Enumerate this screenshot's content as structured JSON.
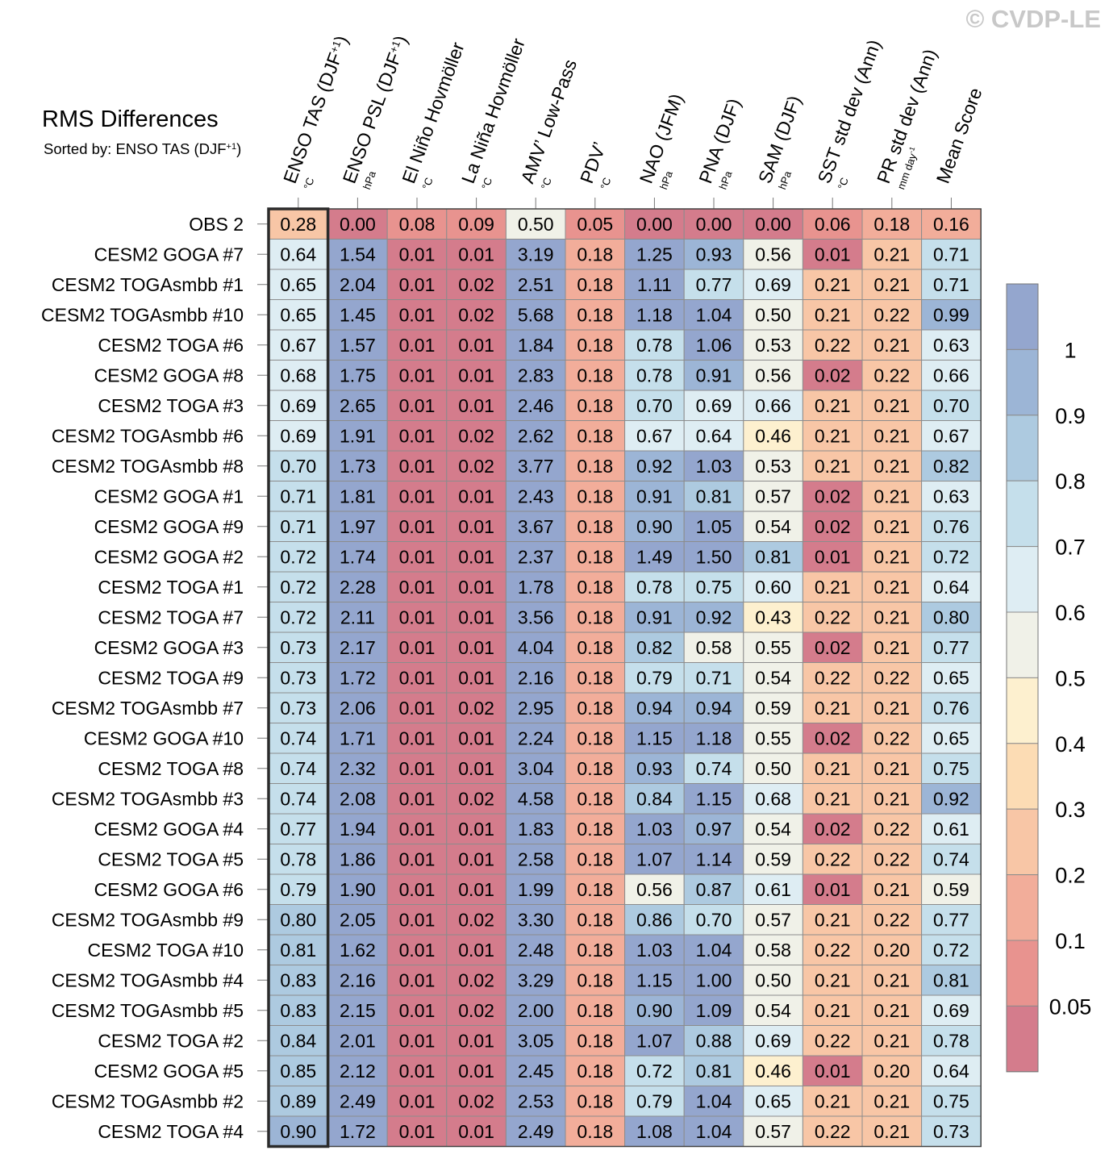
{
  "watermark": "© CVDP-LE",
  "chart_data": {
    "type": "heatmap",
    "title": "RMS Differences",
    "subtitle": {
      "text": "Sorted by: ENSO TAS (DJF",
      "sup": "+1",
      "close": ")"
    },
    "columns": [
      {
        "label": "ENSO TAS (DJF",
        "sup": "+1",
        "close": ")",
        "unit": "°C"
      },
      {
        "label": "ENSO PSL (DJF",
        "sup": "+1",
        "close": ")",
        "unit": "hPa"
      },
      {
        "label": "El Niño Hovmöller",
        "unit": "°C"
      },
      {
        "label": "La Niña Hovmöller",
        "unit": "°C"
      },
      {
        "label": "AMV’ Low-Pass",
        "unit": "°C"
      },
      {
        "label": "PDV’",
        "unit": "°C"
      },
      {
        "label": "NAO (JFM)",
        "unit": "hPa"
      },
      {
        "label": "PNA (DJF)",
        "unit": "hPa"
      },
      {
        "label": "SAM (DJF)",
        "unit": "hPa"
      },
      {
        "label": "SST std dev (Ann)",
        "unit": "°C"
      },
      {
        "label": "PR std dev (Ann)",
        "unit": "mm day",
        "unit_sup": "-1"
      },
      {
        "label": "Mean Score",
        "unit": ""
      }
    ],
    "rows": [
      "OBS 2",
      "CESM2 GOGA #7",
      "CESM2 TOGAsmbb #1",
      "CESM2 TOGAsmbb #10",
      "CESM2 TOGA #6",
      "CESM2 GOGA #8",
      "CESM2 TOGA #3",
      "CESM2 TOGAsmbb #6",
      "CESM2 TOGAsmbb #8",
      "CESM2 GOGA #1",
      "CESM2 GOGA #9",
      "CESM2 GOGA #2",
      "CESM2 TOGA #1",
      "CESM2 TOGA #7",
      "CESM2 GOGA #3",
      "CESM2 TOGA #9",
      "CESM2 TOGAsmbb #7",
      "CESM2 GOGA #10",
      "CESM2 TOGA #8",
      "CESM2 TOGAsmbb #3",
      "CESM2 GOGA #4",
      "CESM2 TOGA #5",
      "CESM2 GOGA #6",
      "CESM2 TOGAsmbb #9",
      "CESM2 TOGA #10",
      "CESM2 TOGAsmbb #4",
      "CESM2 TOGAsmbb #5",
      "CESM2 TOGA #2",
      "CESM2 GOGA #5",
      "CESM2 TOGAsmbb #2",
      "CESM2 TOGA #4"
    ],
    "values": [
      [
        "0.28",
        "0.00",
        "0.08",
        "0.09",
        "0.50",
        "0.05",
        "0.00",
        "0.00",
        "0.00",
        "0.06",
        "0.18",
        "0.16"
      ],
      [
        "0.64",
        "1.54",
        "0.01",
        "0.01",
        "3.19",
        "0.18",
        "1.25",
        "0.93",
        "0.56",
        "0.01",
        "0.21",
        "0.71"
      ],
      [
        "0.65",
        "2.04",
        "0.01",
        "0.02",
        "2.51",
        "0.18",
        "1.11",
        "0.77",
        "0.69",
        "0.21",
        "0.21",
        "0.71"
      ],
      [
        "0.65",
        "1.45",
        "0.01",
        "0.02",
        "5.68",
        "0.18",
        "1.18",
        "1.04",
        "0.50",
        "0.21",
        "0.22",
        "0.99"
      ],
      [
        "0.67",
        "1.57",
        "0.01",
        "0.01",
        "1.84",
        "0.18",
        "0.78",
        "1.06",
        "0.53",
        "0.22",
        "0.21",
        "0.63"
      ],
      [
        "0.68",
        "1.75",
        "0.01",
        "0.01",
        "2.83",
        "0.18",
        "0.78",
        "0.91",
        "0.56",
        "0.02",
        "0.22",
        "0.66"
      ],
      [
        "0.69",
        "2.65",
        "0.01",
        "0.01",
        "2.46",
        "0.18",
        "0.70",
        "0.69",
        "0.66",
        "0.21",
        "0.21",
        "0.70"
      ],
      [
        "0.69",
        "1.91",
        "0.01",
        "0.02",
        "2.62",
        "0.18",
        "0.67",
        "0.64",
        "0.46",
        "0.21",
        "0.21",
        "0.67"
      ],
      [
        "0.70",
        "1.73",
        "0.01",
        "0.02",
        "3.77",
        "0.18",
        "0.92",
        "1.03",
        "0.53",
        "0.21",
        "0.21",
        "0.82"
      ],
      [
        "0.71",
        "1.81",
        "0.01",
        "0.01",
        "2.43",
        "0.18",
        "0.91",
        "0.81",
        "0.57",
        "0.02",
        "0.21",
        "0.63"
      ],
      [
        "0.71",
        "1.97",
        "0.01",
        "0.01",
        "3.67",
        "0.18",
        "0.90",
        "1.05",
        "0.54",
        "0.02",
        "0.21",
        "0.76"
      ],
      [
        "0.72",
        "1.74",
        "0.01",
        "0.01",
        "2.37",
        "0.18",
        "1.49",
        "1.50",
        "0.81",
        "0.01",
        "0.21",
        "0.72"
      ],
      [
        "0.72",
        "2.28",
        "0.01",
        "0.01",
        "1.78",
        "0.18",
        "0.78",
        "0.75",
        "0.60",
        "0.21",
        "0.21",
        "0.64"
      ],
      [
        "0.72",
        "2.11",
        "0.01",
        "0.01",
        "3.56",
        "0.18",
        "0.91",
        "0.92",
        "0.43",
        "0.22",
        "0.21",
        "0.80"
      ],
      [
        "0.73",
        "2.17",
        "0.01",
        "0.01",
        "4.04",
        "0.18",
        "0.82",
        "0.58",
        "0.55",
        "0.02",
        "0.21",
        "0.77"
      ],
      [
        "0.73",
        "1.72",
        "0.01",
        "0.01",
        "2.16",
        "0.18",
        "0.79",
        "0.71",
        "0.54",
        "0.22",
        "0.22",
        "0.65"
      ],
      [
        "0.73",
        "2.06",
        "0.01",
        "0.02",
        "2.95",
        "0.18",
        "0.94",
        "0.94",
        "0.59",
        "0.21",
        "0.21",
        "0.76"
      ],
      [
        "0.74",
        "1.71",
        "0.01",
        "0.01",
        "2.24",
        "0.18",
        "1.15",
        "1.18",
        "0.55",
        "0.02",
        "0.22",
        "0.65"
      ],
      [
        "0.74",
        "2.32",
        "0.01",
        "0.01",
        "3.04",
        "0.18",
        "0.93",
        "0.74",
        "0.50",
        "0.21",
        "0.21",
        "0.75"
      ],
      [
        "0.74",
        "2.08",
        "0.01",
        "0.02",
        "4.58",
        "0.18",
        "0.84",
        "1.15",
        "0.68",
        "0.21",
        "0.21",
        "0.92"
      ],
      [
        "0.77",
        "1.94",
        "0.01",
        "0.01",
        "1.83",
        "0.18",
        "1.03",
        "0.97",
        "0.54",
        "0.02",
        "0.22",
        "0.61"
      ],
      [
        "0.78",
        "1.86",
        "0.01",
        "0.01",
        "2.58",
        "0.18",
        "1.07",
        "1.14",
        "0.59",
        "0.22",
        "0.22",
        "0.74"
      ],
      [
        "0.79",
        "1.90",
        "0.01",
        "0.01",
        "1.99",
        "0.18",
        "0.56",
        "0.87",
        "0.61",
        "0.01",
        "0.21",
        "0.59"
      ],
      [
        "0.80",
        "2.05",
        "0.01",
        "0.02",
        "3.30",
        "0.18",
        "0.86",
        "0.70",
        "0.57",
        "0.21",
        "0.22",
        "0.77"
      ],
      [
        "0.81",
        "1.62",
        "0.01",
        "0.01",
        "2.48",
        "0.18",
        "1.03",
        "1.04",
        "0.58",
        "0.22",
        "0.20",
        "0.72"
      ],
      [
        "0.83",
        "2.16",
        "0.01",
        "0.02",
        "3.29",
        "0.18",
        "1.15",
        "1.00",
        "0.50",
        "0.21",
        "0.21",
        "0.81"
      ],
      [
        "0.83",
        "2.15",
        "0.01",
        "0.02",
        "2.00",
        "0.18",
        "0.90",
        "1.09",
        "0.54",
        "0.21",
        "0.21",
        "0.69"
      ],
      [
        "0.84",
        "2.01",
        "0.01",
        "0.01",
        "3.05",
        "0.18",
        "1.07",
        "0.88",
        "0.69",
        "0.22",
        "0.21",
        "0.78"
      ],
      [
        "0.85",
        "2.12",
        "0.01",
        "0.01",
        "2.45",
        "0.18",
        "0.72",
        "0.81",
        "0.46",
        "0.01",
        "0.20",
        "0.64"
      ],
      [
        "0.89",
        "2.49",
        "0.01",
        "0.02",
        "2.53",
        "0.18",
        "0.79",
        "1.04",
        "0.65",
        "0.21",
        "0.21",
        "0.75"
      ],
      [
        "0.90",
        "1.72",
        "0.01",
        "0.01",
        "2.49",
        "0.18",
        "1.08",
        "1.04",
        "0.57",
        "0.22",
        "0.21",
        "0.73"
      ]
    ],
    "sorted_column": 0,
    "colorbar": {
      "levels": [
        0.05,
        0.1,
        0.2,
        0.3,
        0.4,
        0.5,
        0.6,
        0.7,
        0.8,
        0.9,
        1
      ],
      "tick_labels": [
        "0.05",
        "0.1",
        "0.2",
        "0.3",
        "0.4",
        "0.5",
        "0.6",
        "0.7",
        "0.8",
        "0.9",
        "1"
      ],
      "colors": [
        "#d47c8c",
        "#e8938f",
        "#f2ad9a",
        "#f8c6a6",
        "#fcdcb4",
        "#fdf0cf",
        "#f0f1e8",
        "#deedf3",
        "#c5dfeb",
        "#adcae0",
        "#9cb5d6",
        "#94a6ce"
      ]
    }
  }
}
